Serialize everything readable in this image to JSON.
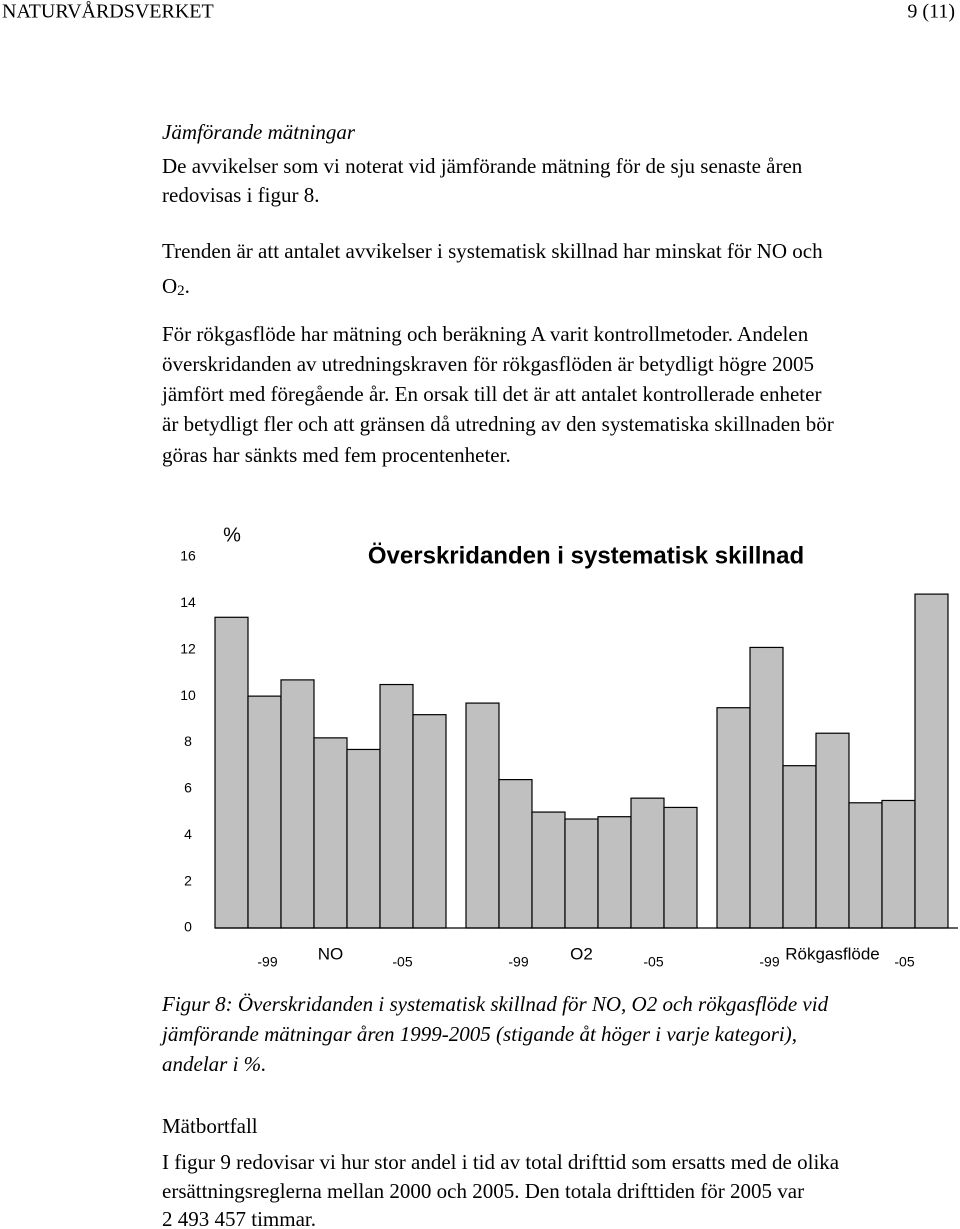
{
  "header": {
    "left": "NATURVÅRDSVERKET",
    "right": "9 (11)"
  },
  "heading1": "Jämförande mätningar",
  "paragraph1": [
    "De avvikelser som vi noterat vid jämförande mätning för de sju senaste åren",
    "redovisas i figur 8."
  ],
  "paragraph2": {
    "lines": [
      "Trenden är att antalet avvikelser i systematisk skillnad har minskat för NO och"
    ],
    "last": {
      "text": "O",
      "subscript": "2",
      "after": "."
    }
  },
  "paragraph3": [
    "För rökgasflöde har mätning och beräkning A varit kontrollmetoder. Andelen",
    "överskridanden av utredningskraven för rökgasflöden är betydligt högre 2005",
    "jämfört med föregående år. En orsak till det är att antalet kontrollerade enheter",
    "är betydligt fler och att gränsen då utredning av den systematiska skillnaden bör",
    "göras har sänkts med fem procentenheter."
  ],
  "chart_data": {
    "type": "bar",
    "title": "Överskridanden i systematisk skillnad",
    "y_label": "%",
    "groups": [
      "NO",
      "O2",
      "Rökgasflöde"
    ],
    "categories": [
      "-99",
      null,
      null,
      null,
      null,
      null,
      "-05",
      "-99",
      null,
      null,
      null,
      null,
      null,
      "-05",
      "-99",
      null,
      null,
      null,
      null,
      null,
      "-05"
    ],
    "values": [
      13.4,
      10.0,
      10.7,
      8.2,
      7.7,
      10.5,
      9.2,
      9.7,
      6.4,
      5.0,
      4.7,
      4.8,
      5.6,
      5.2,
      9.5,
      12.1,
      7.0,
      8.4,
      5.4,
      5.5,
      14.4
    ],
    "color": "#c0c0c0",
    "ylim": [
      0,
      16
    ],
    "yticks": [
      0,
      2,
      4,
      6,
      8,
      10,
      12,
      14,
      16
    ],
    "grid": false
  },
  "caption": [
    "Figur 8: Överskridanden i systematisk skillnad för NO, O2 och  rökgasflöde vid",
    "jämförande mätningar åren 1999-2005 (stigande åt höger i varje kategori),",
    "andelar i %."
  ],
  "heading2": "Mätbortfall",
  "paragraph4": [
    "I figur 9 redovisar vi hur stor andel i tid av total drifttid som ersatts med de olika",
    "ersättningsreglerna mellan 2000 och 2005. Den totala drifttiden för 2005 var",
    "2 493 457 timmar."
  ]
}
